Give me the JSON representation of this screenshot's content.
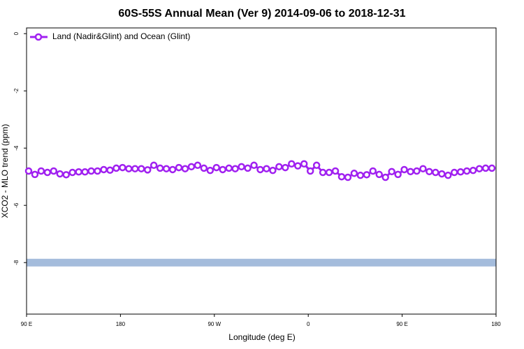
{
  "chart_data": {
    "type": "line",
    "title": "60S-55S Annual Mean (Ver 9)   2014-09-06 to 2018-12-31",
    "x_label": "Longitude (deg E)",
    "y_label": "XCO2 - MLO trend (ppm)",
    "xlim": [
      90,
      540
    ],
    "ylim": [
      -9.8,
      0.2
    ],
    "xticks": [
      {
        "value": 90,
        "label": "90 E"
      },
      180,
      {
        "value": 270,
        "label": "90 W"
      },
      {
        "value": 360,
        "label": "0"
      },
      {
        "value": 450,
        "label": "90 E"
      },
      {
        "value": 540,
        "label": "180"
      }
    ],
    "yticks": [
      0,
      -2,
      -4,
      -6,
      -8
    ],
    "legend": "top-left",
    "reference_band": {
      "value": -8,
      "color": "#a4bcdc"
    },
    "x": [
      92,
      98,
      104,
      110,
      116,
      122,
      128,
      134,
      140,
      146,
      152,
      158,
      164,
      170,
      176,
      182,
      188,
      194,
      200,
      206,
      212,
      218,
      224,
      230,
      236,
      242,
      248,
      254,
      260,
      266,
      272,
      278,
      284,
      290,
      296,
      302,
      308,
      314,
      320,
      326,
      332,
      338,
      344,
      350,
      356,
      362,
      368,
      374,
      380,
      386,
      392,
      398,
      404,
      410,
      416,
      422,
      428,
      434,
      440,
      446,
      452,
      458,
      464,
      470,
      476,
      482,
      488,
      494,
      500,
      506,
      512,
      518,
      524,
      530,
      536
    ],
    "series": [
      {
        "name": "Land (Nadir&Glint) and Ocean (Glint)",
        "color": "#a020f0",
        "values": [
          -4.8,
          -4.92,
          -4.8,
          -4.85,
          -4.8,
          -4.9,
          -4.93,
          -4.85,
          -4.83,
          -4.83,
          -4.8,
          -4.8,
          -4.75,
          -4.77,
          -4.7,
          -4.68,
          -4.72,
          -4.72,
          -4.72,
          -4.76,
          -4.6,
          -4.7,
          -4.72,
          -4.75,
          -4.68,
          -4.72,
          -4.65,
          -4.6,
          -4.7,
          -4.78,
          -4.68,
          -4.75,
          -4.7,
          -4.72,
          -4.65,
          -4.7,
          -4.6,
          -4.75,
          -4.72,
          -4.78,
          -4.65,
          -4.68,
          -4.55,
          -4.62,
          -4.55,
          -4.8,
          -4.6,
          -4.85,
          -4.85,
          -4.8,
          -5.0,
          -5.02,
          -4.88,
          -4.95,
          -4.93,
          -4.8,
          -4.92,
          -5.02,
          -4.82,
          -4.92,
          -4.75,
          -4.82,
          -4.8,
          -4.72,
          -4.82,
          -4.85,
          -4.9,
          -4.95,
          -4.85,
          -4.83,
          -4.8,
          -4.78,
          -4.72,
          -4.7,
          -4.7
        ]
      }
    ]
  }
}
